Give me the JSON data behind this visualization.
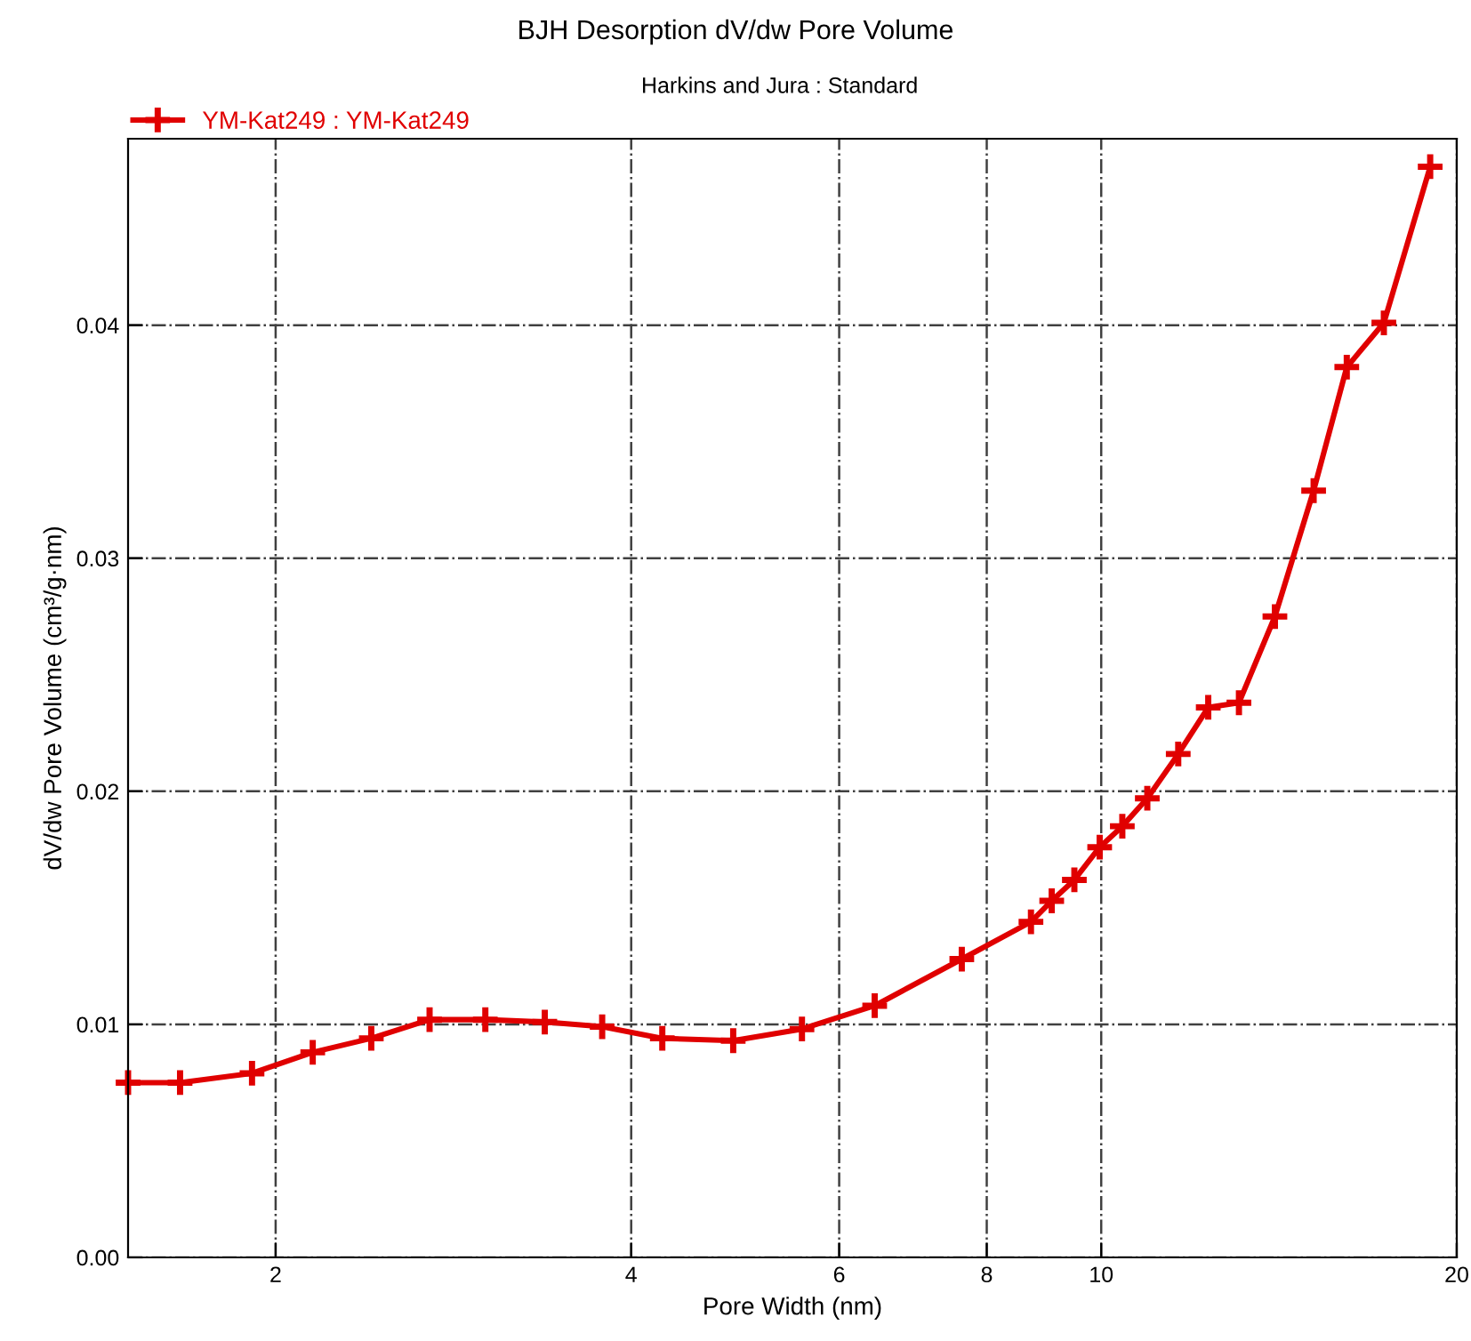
{
  "chart_data": {
    "type": "line",
    "title": "BJH Desorption dV/dw Pore Volume",
    "subtitle": "Harkins and Jura : Standard",
    "xlabel": "Pore Width (nm)",
    "ylabel": "dV/dw Pore Volume (cm³/g·nm)",
    "log": "x",
    "xlim": [
      1.5,
      20
    ],
    "xticks": [
      2,
      4,
      6,
      8,
      10,
      20
    ],
    "ylim": [
      0,
      0.048
    ],
    "yticks": [
      {
        "value": 0,
        "label": "0.00"
      },
      {
        "value": 0.01,
        "label": "0.01"
      },
      {
        "value": 0.02,
        "label": "0.02"
      },
      {
        "value": 0.03,
        "label": "0.03"
      },
      {
        "value": 0.04,
        "label": "0.04"
      }
    ],
    "grid": true,
    "legend": "top left",
    "marker": "cross",
    "line_style": "solid",
    "series": [
      {
        "name": "YM-Kat249 : YM-Kat249",
        "color": "#e00000",
        "x": [
          1.5,
          1.66,
          1.91,
          2.15,
          2.41,
          2.7,
          3.01,
          3.38,
          3.78,
          4.25,
          4.88,
          5.58,
          6.43,
          7.62,
          8.72,
          9.08,
          9.49,
          9.97,
          10.42,
          10.94,
          11.62,
          12.32,
          13.08,
          14.03,
          15.13,
          16.14,
          17.35,
          18.99
        ],
        "values": [
          0.0075,
          0.0075,
          0.0079,
          0.0088,
          0.0094,
          0.0102,
          0.0102,
          0.0101,
          0.0099,
          0.0094,
          0.0093,
          0.0098,
          0.0108,
          0.0128,
          0.0144,
          0.0153,
          0.0162,
          0.0176,
          0.0185,
          0.0197,
          0.0216,
          0.0236,
          0.0238,
          0.0275,
          0.0329,
          0.0382,
          0.0401,
          0.0468
        ]
      }
    ]
  }
}
